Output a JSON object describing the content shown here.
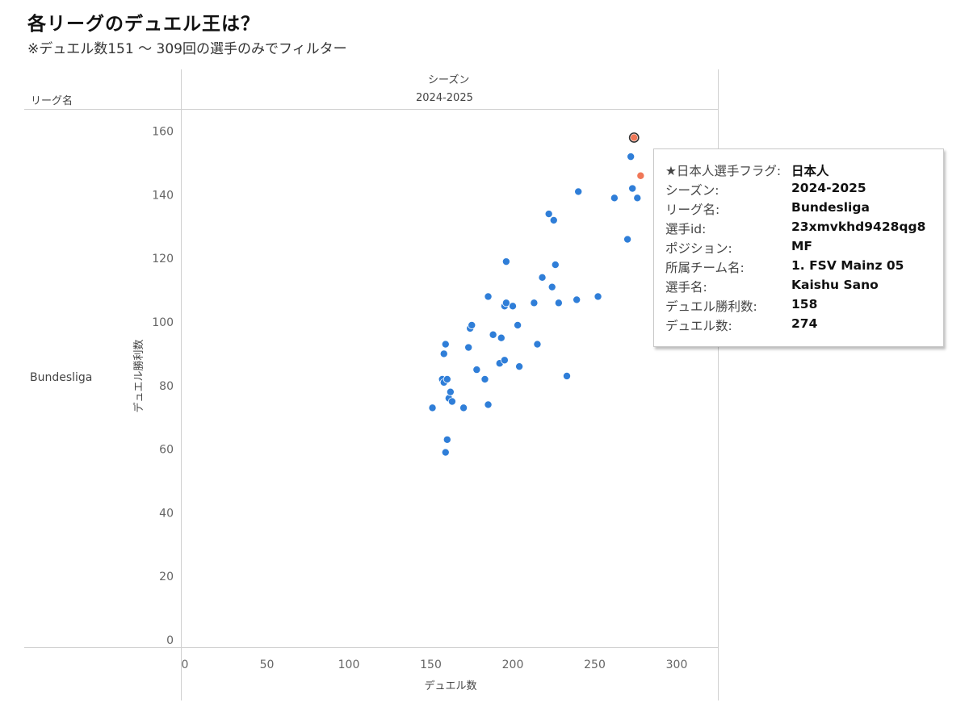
{
  "page": {
    "title": "各リーグのデュエル王は？",
    "subtitle": "※デュエル数151 〜 309回の選手のみでフィルター"
  },
  "headers": {
    "row_dimension": "リーグ名",
    "column_dimension": "シーズン",
    "column_value": "2024-2025",
    "row_value": "Bundesliga"
  },
  "chart_data": {
    "type": "scatter",
    "xlabel": "デュエル数",
    "ylabel": "デュエル勝利数",
    "xlim": [
      0,
      330
    ],
    "ylim": [
      0,
      160
    ],
    "x_ticks": [
      0,
      50,
      100,
      150,
      200,
      250,
      300
    ],
    "y_ticks": [
      0,
      20,
      40,
      60,
      80,
      100,
      120,
      140,
      160
    ],
    "grid": false,
    "colors": {
      "default": "#2f7ed8",
      "japanese": "#f07757",
      "highlight_outline": "#333333"
    },
    "series": [
      {
        "points": [
          [
            151,
            73
          ],
          [
            157,
            82
          ],
          [
            158,
            90
          ],
          [
            158,
            81
          ],
          [
            159,
            93
          ],
          [
            160,
            82
          ],
          [
            160,
            63
          ],
          [
            159,
            59
          ],
          [
            161,
            76
          ],
          [
            162,
            78
          ],
          [
            163,
            75
          ],
          [
            170,
            73
          ],
          [
            173,
            92
          ],
          [
            174,
            98
          ],
          [
            175,
            99
          ],
          [
            178,
            85
          ],
          [
            183,
            82
          ],
          [
            185,
            74
          ],
          [
            185,
            108
          ],
          [
            188,
            96
          ],
          [
            192,
            87
          ],
          [
            193,
            95
          ],
          [
            195,
            88
          ],
          [
            195,
            105
          ],
          [
            196,
            106
          ],
          [
            196,
            119
          ],
          [
            200,
            105
          ],
          [
            203,
            99
          ],
          [
            204,
            86
          ],
          [
            213,
            106
          ],
          [
            215,
            93
          ],
          [
            218,
            114
          ],
          [
            222,
            134
          ],
          [
            224,
            111
          ],
          [
            225,
            132
          ],
          [
            226,
            118
          ],
          [
            228,
            106
          ],
          [
            233,
            83
          ],
          [
            239,
            107
          ],
          [
            240,
            141
          ],
          [
            252,
            108
          ],
          [
            262,
            139
          ],
          [
            270,
            126
          ],
          [
            272,
            152
          ],
          [
            273,
            142
          ],
          [
            276,
            139
          ]
        ]
      },
      {
        "points": [
          [
            274,
            158
          ],
          [
            278,
            146
          ]
        ]
      }
    ],
    "selected_point": [
      274,
      158
    ]
  },
  "tooltip": {
    "rows": [
      {
        "key": "★日本人選手フラグ:",
        "value": "日本人"
      },
      {
        "key": "シーズン:",
        "value": "2024-2025"
      },
      {
        "key": "リーグ名:",
        "value": "Bundesliga"
      },
      {
        "key": "選手id:",
        "value": "23xmvkhd9428qg8"
      },
      {
        "key": "ポジション:",
        "value": "MF"
      },
      {
        "key": "所属チーム名:",
        "value": "1. FSV Mainz 05"
      },
      {
        "key": "選手名:",
        "value": "Kaishu Sano"
      },
      {
        "key": "デュエル勝利数:",
        "value": "158"
      },
      {
        "key": "デュエル数:",
        "value": "274"
      }
    ]
  }
}
